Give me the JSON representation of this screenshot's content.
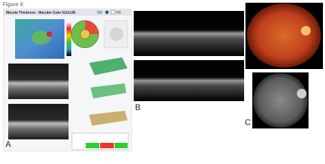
{
  "caption": "Figure 4:",
  "report": {
    "title": "Macula Thickness : Macular Cube 512x128",
    "eye_options": [
      "OD",
      "OS"
    ]
  },
  "panels": [
    "A",
    "B",
    "C"
  ]
}
